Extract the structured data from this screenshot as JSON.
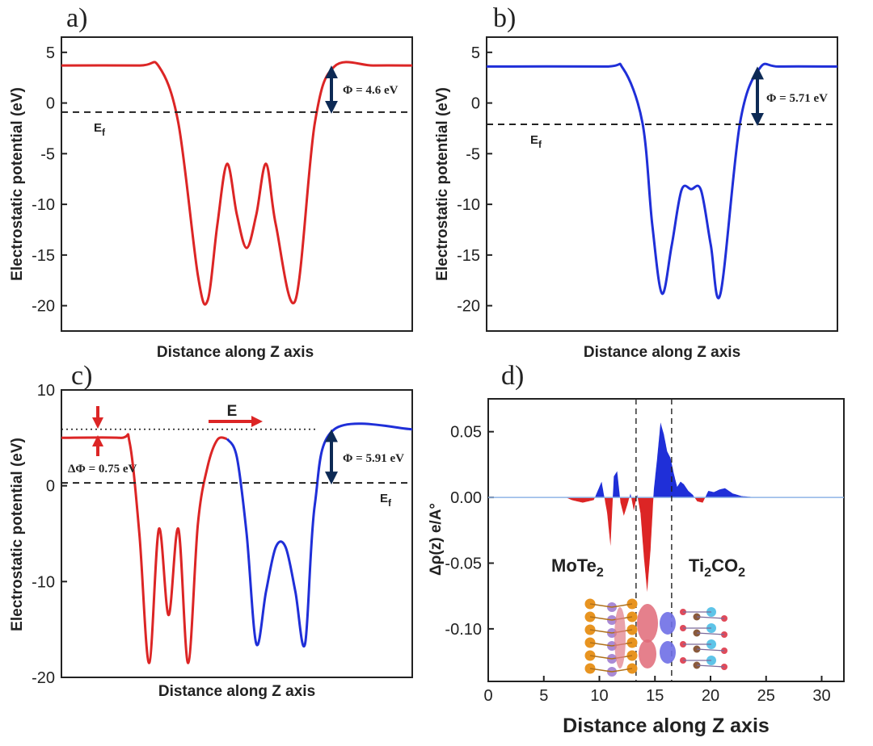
{
  "colors": {
    "red": "#dc2525",
    "blue": "#1f2fd8",
    "navy": "#0d2a55",
    "frame": "#222222",
    "flat": "#8fb4e6"
  },
  "chart_data": [
    {
      "panel": "a)",
      "type": "line",
      "xlabel": "Distance along Z axis",
      "ylabel": "Electrostatic potential (eV)",
      "ylim": [
        -22.5,
        6.5
      ],
      "yticks": [
        "5",
        "0",
        "-5",
        "-10",
        "-15",
        "-20"
      ],
      "series": [
        {
          "color": "red",
          "x": [
            0,
            8,
            10,
            12,
            14,
            15,
            16,
            17,
            18,
            19,
            20,
            21,
            22,
            24,
            26,
            28,
            32,
            36
          ],
          "y": [
            3.7,
            3.7,
            3.6,
            -2,
            -17,
            -19.5,
            -12,
            -6,
            -11,
            -14.3,
            -11,
            -6,
            -12,
            -19.5,
            -2,
            3.6,
            3.7,
            3.7
          ]
        }
      ],
      "annotations": {
        "fermi_level": -0.9,
        "fermi_label": "E",
        "fermi_sub": "f",
        "work_function": "Φ = 4.6 eV"
      }
    },
    {
      "panel": "b)",
      "type": "line",
      "xlabel": "Distance along Z axis",
      "ylabel": "Electrostatic potential (eV)",
      "ylim": [
        -22.5,
        6.5
      ],
      "yticks": [
        "5",
        "0",
        "-5",
        "-10",
        "-15",
        "-20"
      ],
      "series": [
        {
          "color": "blue",
          "x": [
            0,
            12,
            14,
            16,
            17,
            18,
            19,
            20,
            21,
            22,
            23,
            24,
            26,
            28,
            30,
            36
          ],
          "y": [
            3.6,
            3.6,
            3.4,
            -2,
            -12,
            -18.8,
            -14,
            -8.6,
            -8.5,
            -8.6,
            -14,
            -18.8,
            -2,
            3.4,
            3.6,
            3.6
          ]
        }
      ],
      "annotations": {
        "fermi_level": -2.1,
        "fermi_label": "E",
        "fermi_sub": "f",
        "work_function": "Φ = 5.71 eV"
      }
    },
    {
      "panel": "c)",
      "type": "line",
      "xlabel": "Distance along Z axis",
      "ylabel": "Electrostatic potential (eV)",
      "ylim": [
        -20,
        10
      ],
      "yticks": [
        "10",
        "0",
        "-10",
        "-20"
      ],
      "series": [
        {
          "color": "red",
          "x": [
            0,
            6,
            7,
            8,
            9,
            10,
            11,
            12,
            13,
            14,
            15,
            16,
            17
          ],
          "y": [
            5,
            5,
            4.5,
            -5,
            -18.5,
            -4.5,
            -13.5,
            -4.5,
            -18.5,
            -4,
            2,
            4.8,
            4.9
          ]
        },
        {
          "color": "blue",
          "x": [
            17,
            18,
            19,
            20,
            21,
            22,
            23,
            24,
            25,
            26,
            28,
            36
          ],
          "y": [
            4.9,
            3,
            -5,
            -16.5,
            -11,
            -6.4,
            -6.4,
            -11,
            -16.5,
            -2,
            5.9,
            5.9
          ]
        }
      ],
      "annotations": {
        "fermi_level": 0.3,
        "fermi_label": "E",
        "fermi_sub": "f",
        "vacuum_dotted": 5.9,
        "delta_work_function": "ΔΦ = 0.75 eV",
        "work_function": "Φ = 5.91 eV",
        "field_label": "E"
      }
    },
    {
      "panel": "d)",
      "type": "area",
      "xlabel": "Distance along Z axis",
      "ylabel": "Δρ(z) e/A°",
      "xlim": [
        0,
        32
      ],
      "ylim": [
        -0.14,
        0.075
      ],
      "xticks": [
        "0",
        "5",
        "10",
        "15",
        "20",
        "25",
        "30"
      ],
      "yticks": [
        "0.05",
        "0.00",
        "-0.05",
        "-0.10"
      ],
      "interface_lines_x": [
        13.3,
        16.5
      ],
      "series": [
        {
          "x": [
            0,
            7,
            7.5,
            8.5,
            9.5,
            10.2,
            10.7,
            11,
            11.3,
            11.6,
            11.9,
            12.2,
            12.5,
            12.8,
            13.1,
            13.4,
            13.7,
            14,
            14.3,
            14.6,
            14.9,
            15.2,
            15.5,
            15.8,
            16.1,
            16.4,
            16.7,
            17,
            17.3,
            17.6,
            18,
            18.4,
            18.8,
            19.3,
            19.8,
            20.3,
            20.8,
            21.3,
            22,
            22.8,
            23.5,
            24,
            32
          ],
          "y": [
            0,
            0,
            -0.002,
            -0.004,
            -0.002,
            0.012,
            -0.012,
            -0.037,
            0.016,
            0.02,
            -0.004,
            -0.014,
            -0.006,
            0.003,
            -0.01,
            0.002,
            -0.012,
            -0.045,
            -0.072,
            -0.04,
            0.006,
            0.03,
            0.057,
            0.048,
            0.035,
            0.03,
            0.018,
            0.008,
            0.012,
            0.01,
            0.005,
            0.002,
            -0.003,
            -0.004,
            0.005,
            0.004,
            0.006,
            0.007,
            0.003,
            0.001,
            0.0005,
            0,
            0
          ]
        }
      ],
      "labels": {
        "left_material": "MoTe",
        "left_sub": "2",
        "right_material_a": "Ti",
        "right_sub_a": "2",
        "right_material_b": "CO",
        "right_sub_b": "2"
      }
    }
  ]
}
